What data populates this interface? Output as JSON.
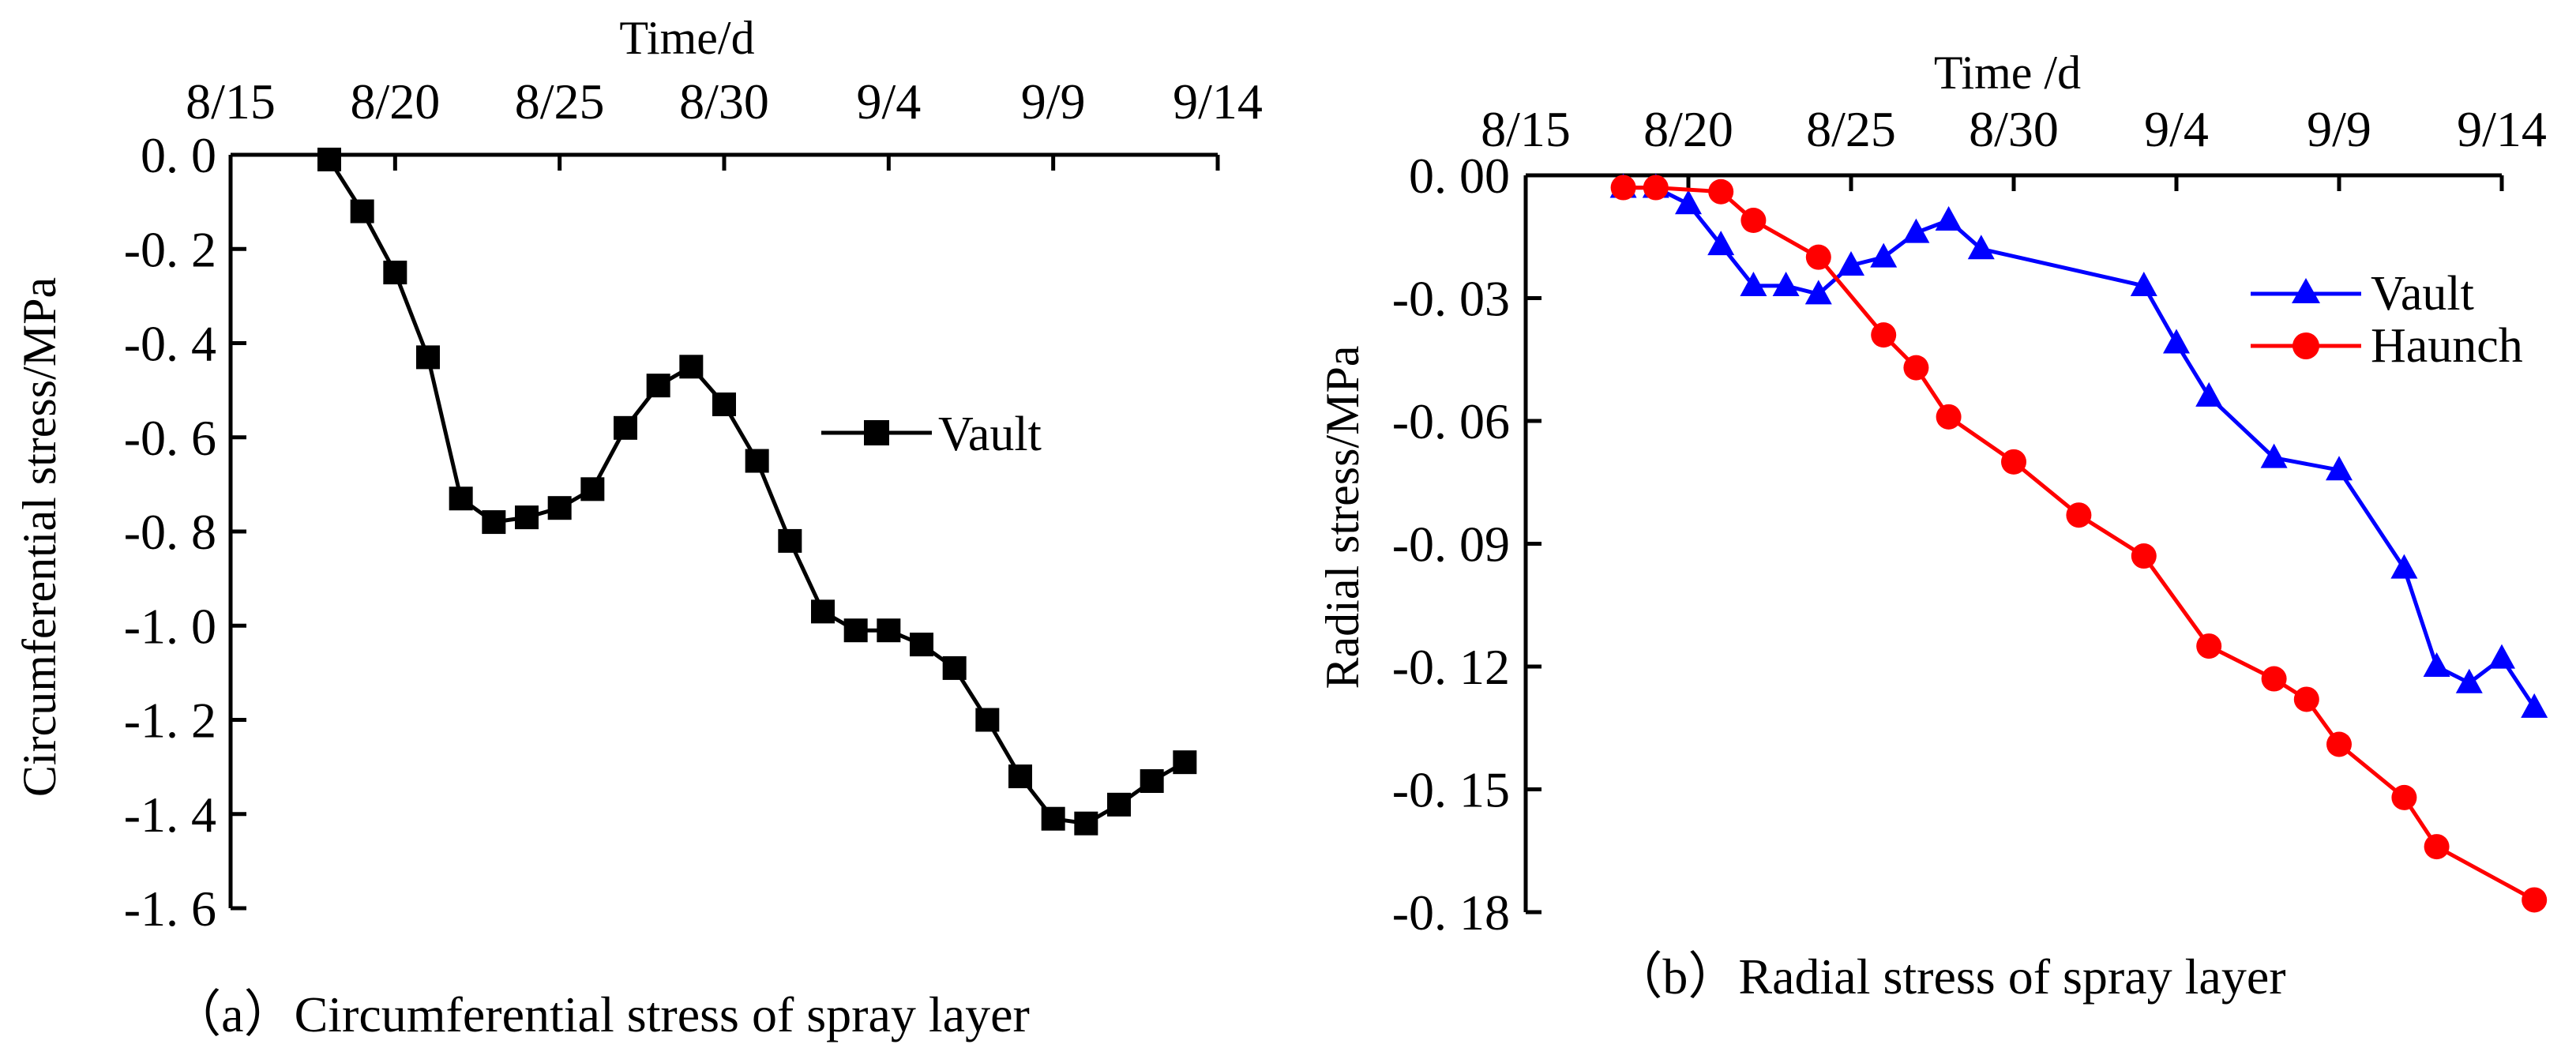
{
  "chart_data": [
    {
      "id": "a",
      "type": "line",
      "caption": "（a）Circumferential stress of spray layer",
      "title": "",
      "xlabel": "Time/d",
      "ylabel": "Circumferential stress/MPa",
      "x_axis_position": "top",
      "x_ticks": [
        {
          "label": "8/15",
          "day": 0
        },
        {
          "label": "8/20",
          "day": 5
        },
        {
          "label": "8/25",
          "day": 10
        },
        {
          "label": "8/30",
          "day": 15
        },
        {
          "label": "9/4",
          "day": 20
        },
        {
          "label": "9/9",
          "day": 25
        },
        {
          "label": "9/14",
          "day": 30
        }
      ],
      "xlim": [
        0,
        30
      ],
      "y_ticks": [
        {
          "label": "0. 0",
          "value": 0.0
        },
        {
          "label": "-0. 2",
          "value": -0.2
        },
        {
          "label": "-0. 4",
          "value": -0.4
        },
        {
          "label": "-0. 6",
          "value": -0.6
        },
        {
          "label": "-0. 8",
          "value": -0.8
        },
        {
          "label": "-1. 0",
          "value": -1.0
        },
        {
          "label": "-1. 2",
          "value": -1.2
        },
        {
          "label": "-1. 4",
          "value": -1.4
        },
        {
          "label": "-1. 6",
          "value": -1.6
        }
      ],
      "ylim": [
        -1.6,
        0.0
      ],
      "legend_position": "center-right",
      "series": [
        {
          "name": "Vault",
          "color": "#000000",
          "marker": "square",
          "x": [
            3,
            4,
            5,
            6,
            7,
            8,
            9,
            10,
            11,
            12,
            13,
            14,
            15,
            16,
            17,
            18,
            19,
            20,
            21,
            22,
            23,
            24,
            25,
            26,
            27,
            28,
            29,
            30
          ],
          "values": [
            -0.01,
            -0.12,
            -0.25,
            -0.43,
            -0.73,
            -0.78,
            -0.77,
            -0.75,
            -0.71,
            -0.58,
            -0.49,
            -0.45,
            -0.53,
            -0.65,
            -0.82,
            -0.97,
            -1.01,
            -1.01,
            -1.04,
            -1.09,
            -1.2,
            -1.32,
            -1.41,
            -1.42,
            -1.38,
            -1.33,
            -1.29,
            null
          ]
        }
      ]
    },
    {
      "id": "b",
      "type": "line",
      "caption": "（b）Radial stress of spray layer",
      "title": "",
      "xlabel": "Time /d",
      "ylabel": "Radial  stress/MPa",
      "x_axis_position": "top",
      "x_ticks": [
        {
          "label": "8/15",
          "day": 0
        },
        {
          "label": "8/20",
          "day": 5
        },
        {
          "label": "8/25",
          "day": 10
        },
        {
          "label": "8/30",
          "day": 15
        },
        {
          "label": "9/4",
          "day": 20
        },
        {
          "label": "9/9",
          "day": 25
        },
        {
          "label": "9/14",
          "day": 30
        }
      ],
      "xlim": [
        0,
        30
      ],
      "y_ticks": [
        {
          "label": "0. 00",
          "value": 0.0
        },
        {
          "label": "-0. 03",
          "value": -0.03
        },
        {
          "label": "-0. 06",
          "value": -0.06
        },
        {
          "label": "-0. 09",
          "value": -0.09
        },
        {
          "label": "-0. 12",
          "value": -0.12
        },
        {
          "label": "-0. 15",
          "value": -0.15
        },
        {
          "label": "-0. 18",
          "value": -0.18
        }
      ],
      "ylim": [
        -0.18,
        0.0
      ],
      "legend_position": "top-right",
      "series": [
        {
          "name": "Vault",
          "color": "#0000ff",
          "marker": "triangle",
          "x": [
            3,
            4,
            5,
            6,
            7,
            8,
            9,
            10,
            11,
            12,
            13,
            14,
            15,
            19,
            20,
            21,
            23,
            25,
            27,
            28,
            29,
            30,
            31
          ],
          "values": [
            -0.003,
            -0.003,
            -0.007,
            -0.017,
            -0.027,
            -0.027,
            -0.029,
            -0.022,
            -0.02,
            -0.014,
            -0.011,
            -0.018,
            null,
            -0.027,
            -0.041,
            -0.054,
            -0.069,
            -0.072,
            -0.096,
            -0.12,
            -0.124,
            -0.118,
            -0.13
          ]
        },
        {
          "name": "Haunch",
          "color": "#ff0000",
          "marker": "circle",
          "x": [
            3,
            4,
            6,
            7,
            9,
            11,
            12,
            13,
            15,
            17,
            19,
            21,
            23,
            24,
            25,
            27,
            28,
            29,
            31
          ],
          "values": [
            -0.003,
            -0.003,
            -0.004,
            -0.011,
            -0.02,
            -0.039,
            -0.047,
            -0.059,
            -0.07,
            -0.083,
            -0.093,
            -0.115,
            -0.123,
            -0.128,
            -0.139,
            -0.152,
            -0.164,
            null,
            -0.177
          ]
        }
      ]
    }
  ]
}
